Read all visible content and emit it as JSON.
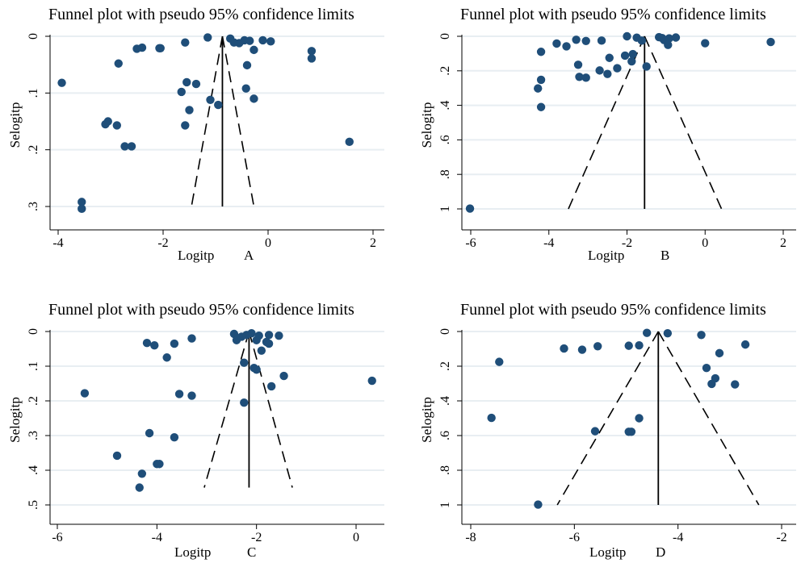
{
  "chart_data": [
    {
      "type": "scatter",
      "panel": "A",
      "title": "Funnel plot with pseudo 95% confidence limits",
      "xlabel": "Logitp",
      "ylabel": "Selogitp",
      "xlim": [
        -4.1,
        2.2
      ],
      "ylim": [
        0,
        0.31
      ],
      "y_reversed": true,
      "grid": "horizontal",
      "xticks": [
        -4,
        -2,
        0,
        2
      ],
      "yticks": [
        0,
        0.1,
        0.2,
        0.3
      ],
      "ytick_labels": [
        "0",
        ".1",
        ".2",
        ".3"
      ],
      "pooled_estimate": -0.87,
      "funnel_line_style": "dashed",
      "funnel_base": {
        "y": 0.3,
        "x_left": -1.46,
        "x_right": -0.27
      },
      "points": [
        {
          "x": -1.15,
          "y": 0.002
        },
        {
          "x": -0.72,
          "y": 0.004
        },
        {
          "x": -0.45,
          "y": 0.007
        },
        {
          "x": -0.35,
          "y": 0.008
        },
        {
          "x": -0.1,
          "y": 0.007
        },
        {
          "x": 0.05,
          "y": 0.009
        },
        {
          "x": -0.55,
          "y": 0.012
        },
        {
          "x": -0.65,
          "y": 0.011
        },
        {
          "x": -1.58,
          "y": 0.011
        },
        {
          "x": -2.4,
          "y": 0.02
        },
        {
          "x": -2.5,
          "y": 0.022
        },
        {
          "x": -2.05,
          "y": 0.021
        },
        {
          "x": -2.07,
          "y": 0.021
        },
        {
          "x": -0.27,
          "y": 0.024
        },
        {
          "x": 0.83,
          "y": 0.026
        },
        {
          "x": 0.83,
          "y": 0.039
        },
        {
          "x": -2.85,
          "y": 0.048
        },
        {
          "x": -0.4,
          "y": 0.051
        },
        {
          "x": -3.93,
          "y": 0.082
        },
        {
          "x": -1.55,
          "y": 0.081
        },
        {
          "x": -1.37,
          "y": 0.084
        },
        {
          "x": -0.42,
          "y": 0.092
        },
        {
          "x": -1.65,
          "y": 0.098
        },
        {
          "x": -1.1,
          "y": 0.112
        },
        {
          "x": -0.27,
          "y": 0.11
        },
        {
          "x": -0.95,
          "y": 0.121
        },
        {
          "x": -1.5,
          "y": 0.13
        },
        {
          "x": -3.05,
          "y": 0.15
        },
        {
          "x": -3.1,
          "y": 0.155
        },
        {
          "x": -2.88,
          "y": 0.157
        },
        {
          "x": -1.58,
          "y": 0.157
        },
        {
          "x": -2.73,
          "y": 0.194
        },
        {
          "x": -2.6,
          "y": 0.194
        },
        {
          "x": 1.55,
          "y": 0.186
        },
        {
          "x": -3.55,
          "y": 0.292
        },
        {
          "x": -3.55,
          "y": 0.304
        }
      ]
    },
    {
      "type": "scatter",
      "panel": "B",
      "title": "Funnel plot with pseudo 95% confidence limits",
      "xlabel": "Logitp",
      "ylabel": "Selogitp",
      "xlim": [
        -6.2,
        2.15
      ],
      "ylim": [
        0,
        1.02
      ],
      "y_reversed": true,
      "grid": "horizontal",
      "xticks": [
        -6,
        -4,
        -2,
        0,
        2
      ],
      "yticks": [
        0,
        0.2,
        0.4,
        0.6,
        0.8,
        1
      ],
      "ytick_labels": [
        "0",
        ".2",
        ".4",
        ".6",
        ".8",
        "1"
      ],
      "pooled_estimate": -1.55,
      "funnel_line_style": "dashed",
      "funnel_base": {
        "y": 1.0,
        "x_left": -3.5,
        "x_right": 0.42
      },
      "points": [
        {
          "x": -2.0,
          "y": 0.0
        },
        {
          "x": -1.75,
          "y": 0.008
        },
        {
          "x": -1.18,
          "y": 0.005
        },
        {
          "x": -1.1,
          "y": 0.01
        },
        {
          "x": -0.92,
          "y": 0.012
        },
        {
          "x": -0.75,
          "y": 0.007
        },
        {
          "x": -1.05,
          "y": 0.022
        },
        {
          "x": -0.95,
          "y": 0.05
        },
        {
          "x": -1.62,
          "y": 0.025
        },
        {
          "x": -2.65,
          "y": 0.025
        },
        {
          "x": -3.3,
          "y": 0.02
        },
        {
          "x": -3.05,
          "y": 0.027
        },
        {
          "x": -3.8,
          "y": 0.042
        },
        {
          "x": -3.55,
          "y": 0.058
        },
        {
          "x": 0.0,
          "y": 0.04
        },
        {
          "x": 1.68,
          "y": 0.033
        },
        {
          "x": -4.2,
          "y": 0.09
        },
        {
          "x": -1.85,
          "y": 0.103
        },
        {
          "x": -2.05,
          "y": 0.112
        },
        {
          "x": -2.45,
          "y": 0.125
        },
        {
          "x": -1.88,
          "y": 0.145
        },
        {
          "x": -3.25,
          "y": 0.165
        },
        {
          "x": -1.5,
          "y": 0.175
        },
        {
          "x": -2.25,
          "y": 0.185
        },
        {
          "x": -2.7,
          "y": 0.198
        },
        {
          "x": -2.5,
          "y": 0.218
        },
        {
          "x": -3.22,
          "y": 0.235
        },
        {
          "x": -3.05,
          "y": 0.24
        },
        {
          "x": -4.2,
          "y": 0.252
        },
        {
          "x": -4.28,
          "y": 0.302
        },
        {
          "x": -4.2,
          "y": 0.41
        },
        {
          "x": -6.02,
          "y": 0.998
        }
      ]
    },
    {
      "type": "scatter",
      "panel": "C",
      "title": "Funnel plot with pseudo 95% confidence limits",
      "xlabel": "Logitp",
      "ylabel": "Selogitp",
      "xlim": [
        -6.1,
        0.5
      ],
      "ylim": [
        0,
        0.505
      ],
      "y_reversed": true,
      "grid": "horizontal",
      "xticks": [
        -6,
        -4,
        -2,
        0
      ],
      "yticks": [
        0,
        0.1,
        0.2,
        0.3,
        0.4,
        0.5
      ],
      "ytick_labels": [
        "0",
        ".1",
        ".2",
        ".3",
        ".4",
        ".5"
      ],
      "pooled_estimate": -2.15,
      "funnel_line_style": "dashed",
      "funnel_base": {
        "y": 0.45,
        "x_left": -3.05,
        "x_right": -1.28
      },
      "points": [
        {
          "x": -2.45,
          "y": 0.007
        },
        {
          "x": -2.2,
          "y": 0.01
        },
        {
          "x": -2.1,
          "y": 0.005
        },
        {
          "x": -1.95,
          "y": 0.012
        },
        {
          "x": -1.75,
          "y": 0.01
        },
        {
          "x": -1.55,
          "y": 0.012
        },
        {
          "x": -3.3,
          "y": 0.02
        },
        {
          "x": -2.4,
          "y": 0.025
        },
        {
          "x": -2.3,
          "y": 0.015
        },
        {
          "x": -1.8,
          "y": 0.03
        },
        {
          "x": -1.75,
          "y": 0.035
        },
        {
          "x": -2.0,
          "y": 0.025
        },
        {
          "x": -4.2,
          "y": 0.033
        },
        {
          "x": -4.05,
          "y": 0.04
        },
        {
          "x": -3.65,
          "y": 0.035
        },
        {
          "x": -1.9,
          "y": 0.055
        },
        {
          "x": -3.8,
          "y": 0.075
        },
        {
          "x": -2.25,
          "y": 0.09
        },
        {
          "x": -2.05,
          "y": 0.105
        },
        {
          "x": -2.0,
          "y": 0.11
        },
        {
          "x": -1.45,
          "y": 0.128
        },
        {
          "x": 0.32,
          "y": 0.142
        },
        {
          "x": -1.7,
          "y": 0.158
        },
        {
          "x": -5.45,
          "y": 0.178
        },
        {
          "x": -3.55,
          "y": 0.18
        },
        {
          "x": -3.3,
          "y": 0.185
        },
        {
          "x": -2.25,
          "y": 0.205
        },
        {
          "x": -4.15,
          "y": 0.293
        },
        {
          "x": -3.65,
          "y": 0.305
        },
        {
          "x": -4.8,
          "y": 0.358
        },
        {
          "x": -4.0,
          "y": 0.382
        },
        {
          "x": -3.95,
          "y": 0.382
        },
        {
          "x": -4.3,
          "y": 0.41
        },
        {
          "x": -4.35,
          "y": 0.45
        }
      ]
    },
    {
      "type": "scatter",
      "panel": "D",
      "title": "Funnel plot with pseudo 95% confidence limits",
      "xlabel": "Logitp",
      "ylabel": "Selogitp",
      "xlim": [
        -8.2,
        -1.8
      ],
      "ylim": [
        0,
        1.02
      ],
      "y_reversed": true,
      "grid": "horizontal",
      "xticks": [
        -8,
        -6,
        -4,
        -2
      ],
      "yticks": [
        0,
        0.2,
        0.4,
        0.6,
        0.8,
        1
      ],
      "ytick_labels": [
        "0",
        ".2",
        ".4",
        ".6",
        ".8",
        "1"
      ],
      "pooled_estimate": -4.38,
      "funnel_line_style": "dashed",
      "funnel_base": {
        "y": 1.0,
        "x_left": -6.33,
        "x_right": -2.44
      },
      "points": [
        {
          "x": -4.6,
          "y": 0.008
        },
        {
          "x": -4.2,
          "y": 0.01
        },
        {
          "x": -3.55,
          "y": 0.02
        },
        {
          "x": -2.7,
          "y": 0.075
        },
        {
          "x": -3.2,
          "y": 0.125
        },
        {
          "x": -4.95,
          "y": 0.082
        },
        {
          "x": -4.75,
          "y": 0.08
        },
        {
          "x": -5.55,
          "y": 0.085
        },
        {
          "x": -5.85,
          "y": 0.105
        },
        {
          "x": -6.2,
          "y": 0.098
        },
        {
          "x": -7.45,
          "y": 0.175
        },
        {
          "x": -3.45,
          "y": 0.21
        },
        {
          "x": -3.28,
          "y": 0.27
        },
        {
          "x": -3.35,
          "y": 0.302
        },
        {
          "x": -2.9,
          "y": 0.305
        },
        {
          "x": -7.6,
          "y": 0.498
        },
        {
          "x": -4.75,
          "y": 0.5
        },
        {
          "x": -5.6,
          "y": 0.575
        },
        {
          "x": -4.95,
          "y": 0.578
        },
        {
          "x": -4.9,
          "y": 0.578
        },
        {
          "x": -6.7,
          "y": 0.998
        }
      ]
    }
  ],
  "colors": {
    "marker": "#1f4e79",
    "grid": "#e8eef2",
    "line": "#000000"
  }
}
